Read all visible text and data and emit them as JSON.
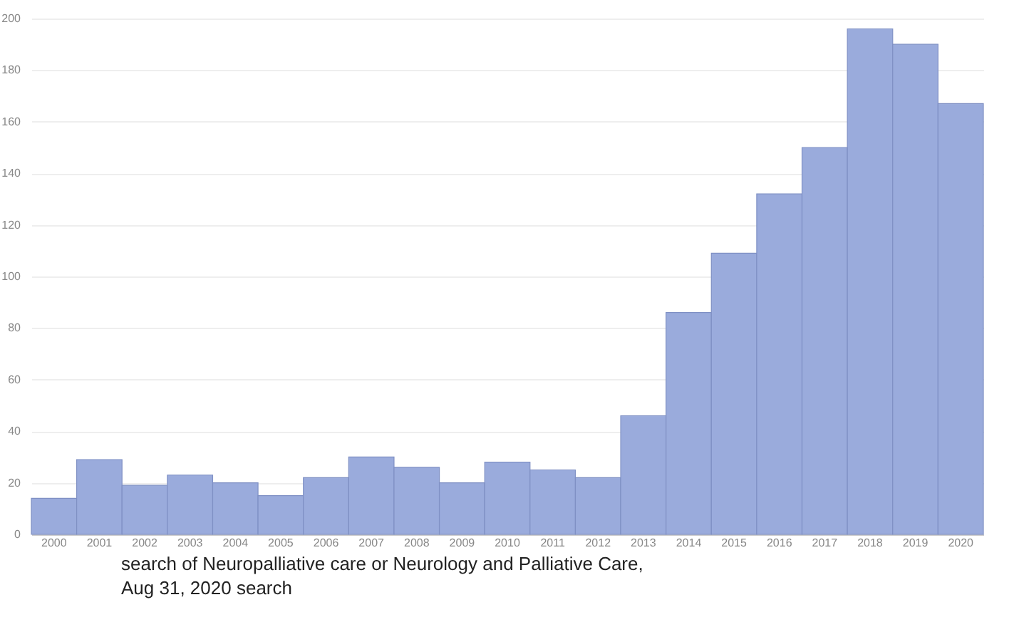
{
  "chart_data": {
    "type": "bar",
    "categories": [
      "2000",
      "2001",
      "2002",
      "2003",
      "2004",
      "2005",
      "2006",
      "2007",
      "2008",
      "2009",
      "2010",
      "2011",
      "2012",
      "2013",
      "2014",
      "2015",
      "2016",
      "2017",
      "2018",
      "2019",
      "2020"
    ],
    "values": [
      14,
      29,
      19,
      23,
      20,
      15,
      22,
      30,
      26,
      20,
      28,
      25,
      22,
      46,
      86,
      109,
      132,
      150,
      196,
      190,
      167
    ],
    "color": "#9aabdc",
    "ylim": [
      0,
      200
    ],
    "yticks": [
      0,
      20,
      40,
      60,
      80,
      100,
      120,
      140,
      160,
      180,
      200
    ],
    "grid": "y",
    "annotations": [
      "search of Neuropalliative care or Neurology and Palliative Care,",
      "Aug 31, 2020 search"
    ]
  }
}
